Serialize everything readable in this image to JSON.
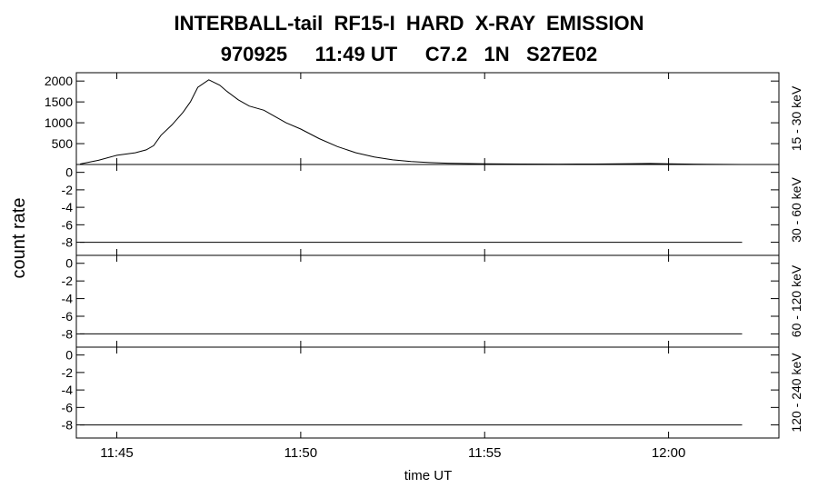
{
  "title_line1": "INTERBALL-tail  RF15-I  HARD  X-RAY  EMISSION",
  "title_line2": "970925     11:49 UT     C7.2   1N   S27E02",
  "ylabel": "count rate",
  "xlabel": "time UT",
  "chart_data": {
    "type": "line",
    "title": "INTERBALL-tail  RF15-I  HARD  X-RAY  EMISSION",
    "subtitle": "970925     11:49 UT     C7.2   1N   S27E02",
    "xlabel": "time UT",
    "ylabel": "count rate",
    "grid": false,
    "legend": "none",
    "x_unit": "minutes past 11:00 UT",
    "xlim": [
      43.9,
      63.0
    ],
    "x_ticks": [
      {
        "value": 45,
        "label": "11:45"
      },
      {
        "value": 50,
        "label": "11:50"
      },
      {
        "value": 55,
        "label": "11:55"
      },
      {
        "value": 60,
        "label": "12:00"
      }
    ],
    "panels": [
      {
        "channel": "15 - 30 keV",
        "ylim": [
          0,
          2200
        ],
        "y_ticks": [
          500,
          1000,
          1500,
          2000
        ],
        "x": [
          44.0,
          44.5,
          45.0,
          45.5,
          45.8,
          46.0,
          46.2,
          46.5,
          46.8,
          47.0,
          47.2,
          47.5,
          47.8,
          48.0,
          48.3,
          48.6,
          49.0,
          49.3,
          49.6,
          50.0,
          50.5,
          51.0,
          51.5,
          52.0,
          52.5,
          53.0,
          53.5,
          54.0,
          55.0,
          56.0,
          57.0,
          58.0,
          59.0,
          59.5,
          60.0,
          61.0,
          62.0
        ],
        "y": [
          10,
          100,
          220,
          280,
          350,
          450,
          700,
          950,
          1250,
          1500,
          1850,
          2030,
          1900,
          1750,
          1550,
          1400,
          1300,
          1150,
          1000,
          850,
          620,
          430,
          280,
          180,
          110,
          70,
          45,
          30,
          15,
          10,
          8,
          10,
          20,
          25,
          15,
          5,
          0
        ]
      },
      {
        "channel": "30 - 60 keV",
        "ylim": [
          -9.5,
          0.9
        ],
        "y_ticks": [
          -8,
          -6,
          -4,
          -2,
          0
        ],
        "x": [
          44.0,
          62.0
        ],
        "y": [
          -8,
          -8
        ]
      },
      {
        "channel": "60 - 120 keV",
        "ylim": [
          -9.5,
          0.9
        ],
        "y_ticks": [
          -8,
          -6,
          -4,
          -2,
          0
        ],
        "x": [
          44.0,
          62.0
        ],
        "y": [
          -8,
          -8
        ]
      },
      {
        "channel": "120 - 240 keV",
        "ylim": [
          -9.5,
          0.9
        ],
        "y_ticks": [
          -8,
          -6,
          -4,
          -2,
          0
        ],
        "x": [
          44.0,
          62.0
        ],
        "y": [
          -8,
          -8
        ]
      }
    ]
  }
}
